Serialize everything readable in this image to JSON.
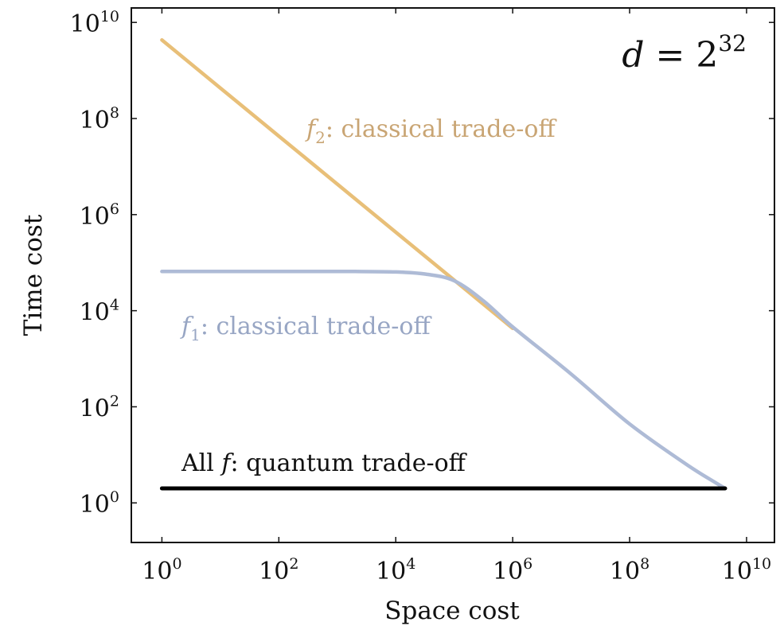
{
  "chart_data": {
    "type": "line",
    "xlabel": "Space cost",
    "ylabel": "Time cost",
    "x_scale": "log",
    "y_scale": "log",
    "xlim": [
      0.3,
      30000000000
    ],
    "ylim": [
      0.15,
      20000000000
    ],
    "x_ticks": [
      {
        "base": "10",
        "exp": "0",
        "value": 1
      },
      {
        "base": "10",
        "exp": "2",
        "value": 100
      },
      {
        "base": "10",
        "exp": "4",
        "value": 10000
      },
      {
        "base": "10",
        "exp": "6",
        "value": 1000000
      },
      {
        "base": "10",
        "exp": "8",
        "value": 100000000
      },
      {
        "base": "10",
        "exp": "10",
        "value": 10000000000
      }
    ],
    "y_ticks": [
      {
        "base": "10",
        "exp": "0",
        "value": 1
      },
      {
        "base": "10",
        "exp": "2",
        "value": 100
      },
      {
        "base": "10",
        "exp": "4",
        "value": 10000
      },
      {
        "base": "10",
        "exp": "6",
        "value": 1000000
      },
      {
        "base": "10",
        "exp": "8",
        "value": 100000000
      },
      {
        "base": "10",
        "exp": "10",
        "value": 10000000000
      }
    ],
    "grid": false,
    "series": [
      {
        "color": "#E8BF78",
        "x": [
          1,
          10,
          100,
          1000,
          10000,
          100000,
          1000000
        ],
        "y": [
          4300000000,
          430000000,
          43000000,
          4300000,
          430000,
          43000,
          4300
        ]
      },
      {
        "color": "#AEBBD6",
        "x": [
          1,
          100,
          2000,
          10000,
          31623,
          100000,
          316228,
          1000000,
          10000000,
          100000000,
          1000000000,
          4300000000
        ],
        "y": [
          65536,
          65536,
          65536,
          64000,
          58000,
          42000,
          16000,
          4600,
          480,
          44,
          6,
          2
        ]
      },
      {
        "color": "#000000",
        "x": [
          1,
          4300000000
        ],
        "y": [
          2,
          2
        ]
      }
    ],
    "annotations": {
      "top_right": {
        "var": "d",
        "eq": " = ",
        "base": "2",
        "exp": "32"
      },
      "f2": {
        "var": "f",
        "sub": "2",
        "text": ": classical trade-off",
        "color": "#C9A574"
      },
      "f1": {
        "var": "f",
        "sub": "1",
        "text": ": classical trade-off",
        "color": "#98A6C4"
      },
      "all": {
        "pre": "All ",
        "var": "f",
        "text": ": quantum trade-off",
        "color": "#111111"
      }
    }
  }
}
